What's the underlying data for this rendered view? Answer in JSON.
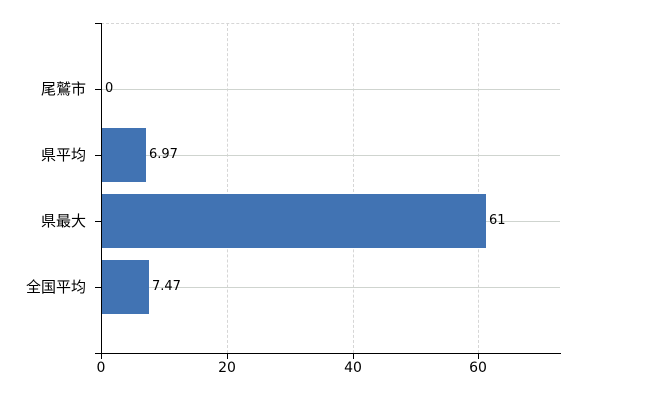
{
  "chart_data": {
    "type": "bar",
    "orientation": "horizontal",
    "title": "",
    "categories": [
      "尾鷲市",
      "県平均",
      "県最大",
      "全国平均"
    ],
    "values": [
      0,
      6.97,
      61,
      7.47
    ],
    "value_labels": [
      "0",
      "6.97",
      "61",
      "7.47"
    ],
    "x_ticks": [
      0,
      20,
      40,
      60
    ],
    "x_tick_labels": [
      "0",
      "20",
      "40",
      "60"
    ],
    "xlim": [
      0,
      73
    ],
    "xlabel": "",
    "ylabel": "",
    "grid": true,
    "legend": false,
    "gridline_styles": {
      "vertical": "dashed",
      "horizontal": "solid",
      "plot_top_border": "dashed"
    },
    "colors": {
      "bar": "#4173b3",
      "axis": "#000000",
      "gridline_solid": "#cfd4cf",
      "gridline_dashed": "#d6d6d6",
      "text": "#000000",
      "background": "#ffffff"
    }
  }
}
